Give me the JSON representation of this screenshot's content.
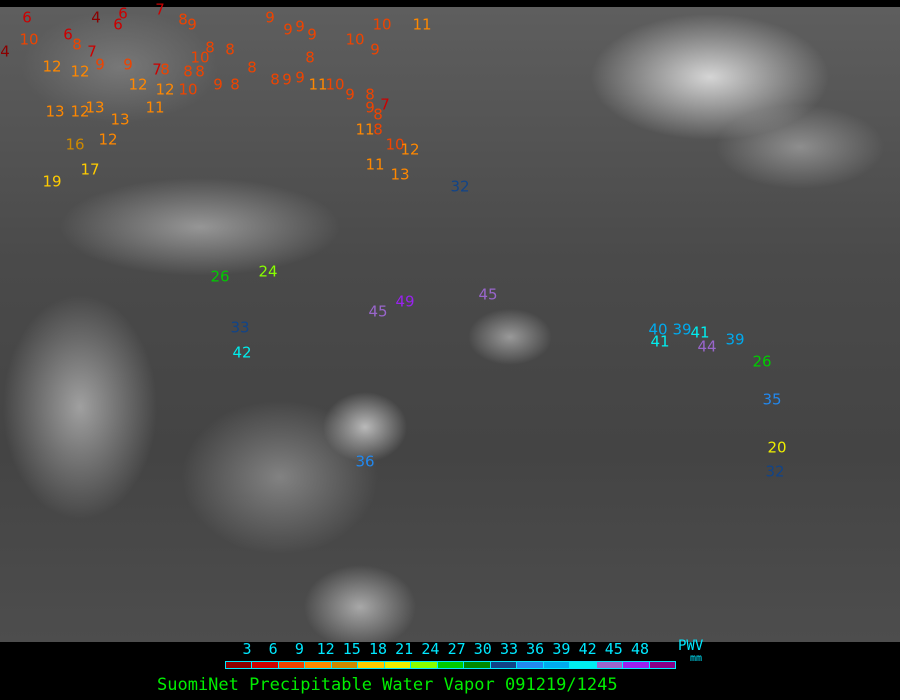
{
  "map": {
    "title": "SuomiNet Precipitable Water Vapor 091219/1245",
    "coastline_color": "#ffff00",
    "stations": [
      "6",
      "4",
      "4",
      "10",
      "6",
      "8",
      "7",
      "6",
      "6",
      "7",
      "8",
      "9",
      "12",
      "12",
      "9",
      "9",
      "12",
      "12",
      "10",
      "7",
      "8",
      "10",
      "8",
      "8",
      "8",
      "8",
      "9",
      "8",
      "8",
      "9",
      "9",
      "9",
      "9",
      "8",
      "8",
      "9",
      "9",
      "11",
      "10",
      "9",
      "8",
      "7",
      "9",
      "8",
      "10",
      "9",
      "10",
      "11",
      "11",
      "8",
      "10",
      "12",
      "11",
      "13",
      "11",
      "13",
      "12",
      "13",
      "13",
      "12",
      "16",
      "17",
      "19",
      "26",
      "24",
      "33",
      "42",
      "45",
      "49",
      "45",
      "32",
      "40",
      "41",
      "39",
      "41",
      "44",
      "39",
      "26",
      "35",
      "20",
      "32",
      "36"
    ]
  },
  "legend": {
    "unit_label": "PWV",
    "unit_sub": "mm",
    "ticks": [
      "3",
      "6",
      "9",
      "12",
      "15",
      "18",
      "21",
      "24",
      "27",
      "30",
      "33",
      "36",
      "39",
      "42",
      "45",
      "48"
    ],
    "colors": [
      "#8b0000",
      "#cc0000",
      "#ee4400",
      "#ff8800",
      "#cc8800",
      "#ffcc00",
      "#eeee00",
      "#88ff00",
      "#00cc00",
      "#008800",
      "#114488",
      "#2288ee",
      "#00aaee",
      "#00eeee",
      "#9966cc",
      "#9922ee",
      "#880088"
    ]
  }
}
